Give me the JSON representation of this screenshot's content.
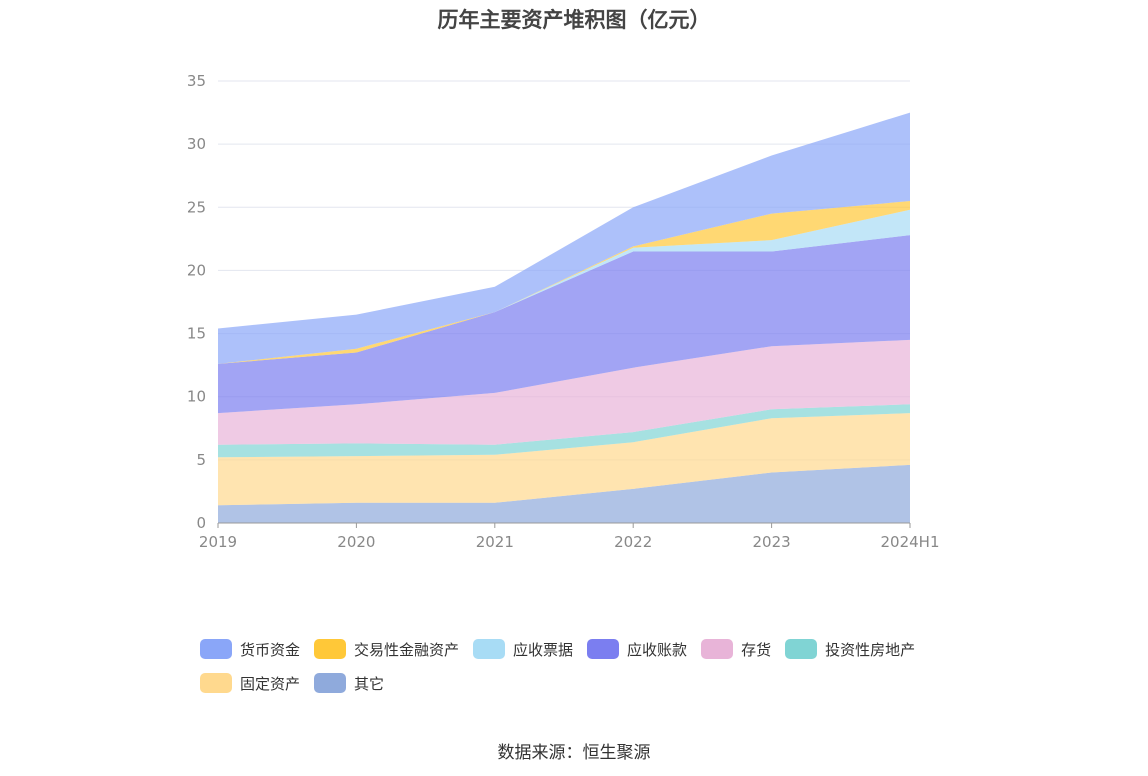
{
  "chart_data": {
    "type": "area",
    "stacked": true,
    "title": "历年主要资产堆积图（亿元）",
    "categories": [
      "2019",
      "2020",
      "2021",
      "2022",
      "2023",
      "2024H1"
    ],
    "ylim": [
      0,
      35
    ],
    "yticks": [
      0,
      5,
      10,
      15,
      20,
      25,
      30,
      35
    ],
    "grid": true,
    "legend_position": "bottom",
    "series": [
      {
        "name": "其它",
        "color": "#8faadc",
        "values": [
          1.4,
          1.6,
          1.6,
          2.7,
          4.0,
          4.6
        ]
      },
      {
        "name": "固定资产",
        "color": "#ffd98e",
        "values": [
          3.8,
          3.7,
          3.8,
          3.7,
          4.3,
          4.1
        ]
      },
      {
        "name": "投资性房地产",
        "color": "#80d4d4",
        "values": [
          1.0,
          1.0,
          0.8,
          0.8,
          0.7,
          0.7
        ]
      },
      {
        "name": "存货",
        "color": "#e8b4d8",
        "values": [
          2.5,
          3.1,
          4.1,
          5.1,
          5.0,
          5.1
        ]
      },
      {
        "name": "应收账款",
        "color": "#7b7ef0",
        "values": [
          3.9,
          4.1,
          6.4,
          9.2,
          7.5,
          8.3
        ]
      },
      {
        "name": "应收票据",
        "color": "#a8dcf5",
        "values": [
          0.0,
          0.0,
          0.0,
          0.3,
          0.9,
          2.0
        ]
      },
      {
        "name": "交易性金融资产",
        "color": "#ffc838",
        "values": [
          0.0,
          0.3,
          0.0,
          0.1,
          2.1,
          0.7
        ]
      },
      {
        "name": "货币资金",
        "color": "#8aa6f8",
        "values": [
          2.8,
          2.7,
          2.0,
          3.1,
          4.6,
          7.0
        ]
      }
    ]
  },
  "legend_order": [
    "货币资金",
    "交易性金融资产",
    "应收票据",
    "应收账款",
    "存货",
    "投资性房地产",
    "固定资产",
    "其它"
  ],
  "legend_labels": [
    "货币资金",
    "交易性金融资产",
    "应收票据",
    "应收账款",
    "存货",
    "投资性房地产",
    "固定资产",
    "其它"
  ],
  "source": "数据来源：恒生聚源"
}
